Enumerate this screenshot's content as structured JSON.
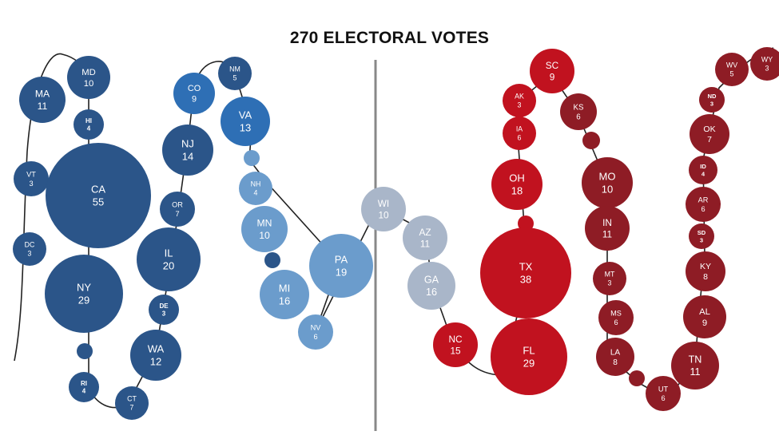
{
  "title": "270 ELECTORAL VOTES",
  "colors": {
    "dark_blue": "#2b5589",
    "medium_blue": "#2e6fb5",
    "light_blue": "#6b9ccc",
    "swing_gray": "#a9b6c9",
    "red": "#c1121f",
    "dark_red": "#8e1c25",
    "line": "#222222",
    "divider": "#888888"
  },
  "states": [
    {
      "abbr": "MA",
      "votes": "11",
      "group": "dark_blue"
    },
    {
      "abbr": "MD",
      "votes": "10",
      "group": "dark_blue"
    },
    {
      "abbr": "HI",
      "votes": "4",
      "group": "dark_blue"
    },
    {
      "abbr": "VT",
      "votes": "3",
      "group": "dark_blue"
    },
    {
      "abbr": "CA",
      "votes": "55",
      "group": "dark_blue"
    },
    {
      "abbr": "DC",
      "votes": "3",
      "group": "dark_blue"
    },
    {
      "abbr": "NY",
      "votes": "29",
      "group": "dark_blue"
    },
    {
      "abbr": "RI",
      "votes": "4",
      "group": "dark_blue"
    },
    {
      "abbr": "CT",
      "votes": "7",
      "group": "dark_blue"
    },
    {
      "abbr": "WA",
      "votes": "12",
      "group": "dark_blue"
    },
    {
      "abbr": "DE",
      "votes": "3",
      "group": "dark_blue"
    },
    {
      "abbr": "IL",
      "votes": "20",
      "group": "dark_blue"
    },
    {
      "abbr": "OR",
      "votes": "7",
      "group": "dark_blue"
    },
    {
      "abbr": "NJ",
      "votes": "14",
      "group": "dark_blue"
    },
    {
      "abbr": "CO",
      "votes": "9",
      "group": "medium_blue"
    },
    {
      "abbr": "NM",
      "votes": "5",
      "group": "dark_blue"
    },
    {
      "abbr": "VA",
      "votes": "13",
      "group": "medium_blue"
    },
    {
      "abbr": "NH",
      "votes": "4",
      "group": "light_blue"
    },
    {
      "abbr": "MN",
      "votes": "10",
      "group": "light_blue"
    },
    {
      "abbr": "MI",
      "votes": "16",
      "group": "light_blue"
    },
    {
      "abbr": "NV",
      "votes": "6",
      "group": "light_blue"
    },
    {
      "abbr": "PA",
      "votes": "19",
      "group": "light_blue"
    },
    {
      "abbr": "WI",
      "votes": "10",
      "group": "swing_gray"
    },
    {
      "abbr": "AZ",
      "votes": "11",
      "group": "swing_gray"
    },
    {
      "abbr": "GA",
      "votes": "16",
      "group": "swing_gray"
    },
    {
      "abbr": "NC",
      "votes": "15",
      "group": "red"
    },
    {
      "abbr": "FL",
      "votes": "29",
      "group": "red"
    },
    {
      "abbr": "TX",
      "votes": "38",
      "group": "red"
    },
    {
      "abbr": "OH",
      "votes": "18",
      "group": "red"
    },
    {
      "abbr": "IA",
      "votes": "6",
      "group": "red"
    },
    {
      "abbr": "AK",
      "votes": "3",
      "group": "red"
    },
    {
      "abbr": "SC",
      "votes": "9",
      "group": "red"
    },
    {
      "abbr": "KS",
      "votes": "6",
      "group": "dark_red"
    },
    {
      "abbr": "MO",
      "votes": "10",
      "group": "dark_red"
    },
    {
      "abbr": "IN",
      "votes": "11",
      "group": "dark_red"
    },
    {
      "abbr": "MT",
      "votes": "3",
      "group": "dark_red"
    },
    {
      "abbr": "MS",
      "votes": "6",
      "group": "dark_red"
    },
    {
      "abbr": "LA",
      "votes": "8",
      "group": "dark_red"
    },
    {
      "abbr": "UT",
      "votes": "6",
      "group": "dark_red"
    },
    {
      "abbr": "TN",
      "votes": "11",
      "group": "dark_red"
    },
    {
      "abbr": "AL",
      "votes": "9",
      "group": "dark_red"
    },
    {
      "abbr": "KY",
      "votes": "8",
      "group": "dark_red"
    },
    {
      "abbr": "SD",
      "votes": "3",
      "group": "dark_red"
    },
    {
      "abbr": "AR",
      "votes": "6",
      "group": "dark_red"
    },
    {
      "abbr": "ID",
      "votes": "4",
      "group": "dark_red"
    },
    {
      "abbr": "OK",
      "votes": "7",
      "group": "dark_red"
    },
    {
      "abbr": "ND",
      "votes": "3",
      "group": "dark_red"
    },
    {
      "abbr": "WV",
      "votes": "5",
      "group": "dark_red"
    },
    {
      "abbr": "WY",
      "votes": "3",
      "group": "dark_red"
    }
  ],
  "connector_dots": [
    {
      "group": "dark_blue"
    },
    {
      "group": "dark_blue"
    },
    {
      "group": "light_blue"
    },
    {
      "group": "red"
    },
    {
      "group": "dark_red"
    },
    {
      "group": "dark_red"
    }
  ]
}
